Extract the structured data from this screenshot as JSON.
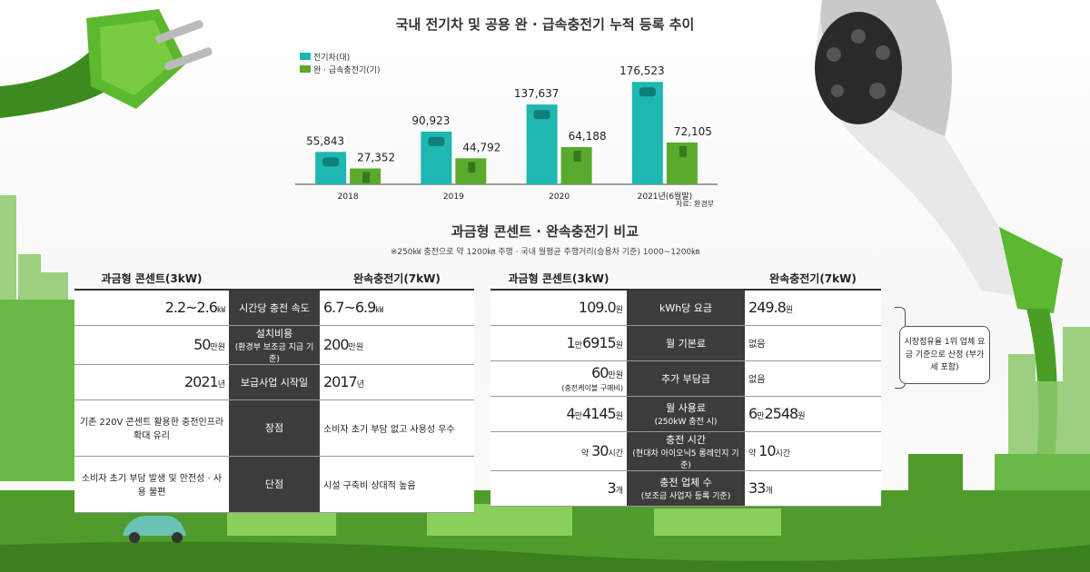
{
  "chart_data": {
    "type": "bar",
    "title": "국내 전기차 및 공용 완 · 급속충전기 누적 등록 추이",
    "categories": [
      "2018",
      "2019",
      "2020",
      "2021년(6월말)"
    ],
    "series": [
      {
        "name": "전기차(대)",
        "values": [
          55843,
          90923,
          137637,
          176523
        ],
        "labels": [
          "55,843",
          "90,923",
          "137,637",
          "176,523"
        ],
        "color": "#1fb8b0"
      },
      {
        "name": "완 · 급속충전기(기)",
        "values": [
          27352,
          44792,
          64188,
          72105
        ],
        "labels": [
          "27,352",
          "44,792",
          "64,188",
          "72,105"
        ],
        "color": "#5aaa2e"
      }
    ],
    "ylim": [
      0,
      180000
    ],
    "source": "자료: 환경부"
  },
  "compare": {
    "title": "과금형 콘센트 · 완속충전기 비교",
    "note": "※250㎾ 충전으로 약 1200㎞ 주행 · 국내 월평균 주행거리(승용차 기준) 1000~1200㎞",
    "left_table": {
      "head_left": "과금형 콘센트(3kW)",
      "head_right": "완속충전기(7kW)",
      "rows": [
        {
          "left_num": "2.2~2.6",
          "left_unit": "㎾",
          "mid": "시간당 충전 속도",
          "mid_sub": "",
          "right_num": "6.7~6.9",
          "right_unit": "㎾"
        },
        {
          "left_num": "50",
          "left_unit": "만원",
          "mid": "설치비용",
          "mid_sub": "(환경부 보조금 지급 기준)",
          "right_num": "200",
          "right_unit": "만원"
        },
        {
          "left_num": "2021",
          "left_unit": "년",
          "mid": "보급사업 시작일",
          "mid_sub": "",
          "right_num": "2017",
          "right_unit": "년"
        },
        {
          "left_text": "기존 220V 콘센트 활용한 충전인프라 확대 유리",
          "mid": "장점",
          "right_text": "소비자 초기 부담 없고 사용성 우수"
        },
        {
          "left_text": "소비자 초기 부담 발생 및 안전성 · 사용 불편",
          "mid": "단점",
          "right_text": "시설 구축비 상대적 높음"
        }
      ]
    },
    "right_table": {
      "head_left": "과금형 콘센트(3kW)",
      "head_right": "완속충전기(7kW)",
      "rows": [
        {
          "left_num": "109.0",
          "left_unit": "원",
          "left_sub": "",
          "mid": "kWh당 요금",
          "mid_sub": "",
          "right_num": "249.8",
          "right_unit": "원",
          "right_plain": ""
        },
        {
          "left_pre": "1",
          "left_pre_unit": "만",
          "left_num": "6915",
          "left_unit": "원",
          "left_sub": "",
          "mid": "월 기본료",
          "mid_sub": "",
          "right_plain": "없음"
        },
        {
          "left_num": "60",
          "left_unit": "만원",
          "left_sub": "(충전케이블 구매비)",
          "mid": "추가 부담금",
          "mid_sub": "",
          "right_plain": "없음"
        },
        {
          "left_pre": "4",
          "left_pre_unit": "만",
          "left_num": "4145",
          "left_unit": "원",
          "left_sub": "",
          "mid": "월 사용료",
          "mid_sub": "(250kW 충전 시)",
          "right_pre": "6",
          "right_pre_unit": "만",
          "right_num": "2548",
          "right_unit": "원"
        },
        {
          "left_prefix": "약 ",
          "left_num": "30",
          "left_unit": "시간",
          "left_sub": "",
          "mid": "충전 시간",
          "mid_sub": "(현대차 아이오닉5 롱레인지 기준)",
          "right_prefix": "약 ",
          "right_num": "10",
          "right_unit": "시간"
        },
        {
          "left_num": "3",
          "left_unit": "개",
          "left_sub": "",
          "mid": "충전 업체 수",
          "mid_sub": "(보조금 사업자 등록 기준)",
          "right_num": "33",
          "right_unit": "개"
        }
      ]
    },
    "callout": "시장점유율 1위 업체 요금 기준으로 산정 (부가세 포함)"
  }
}
